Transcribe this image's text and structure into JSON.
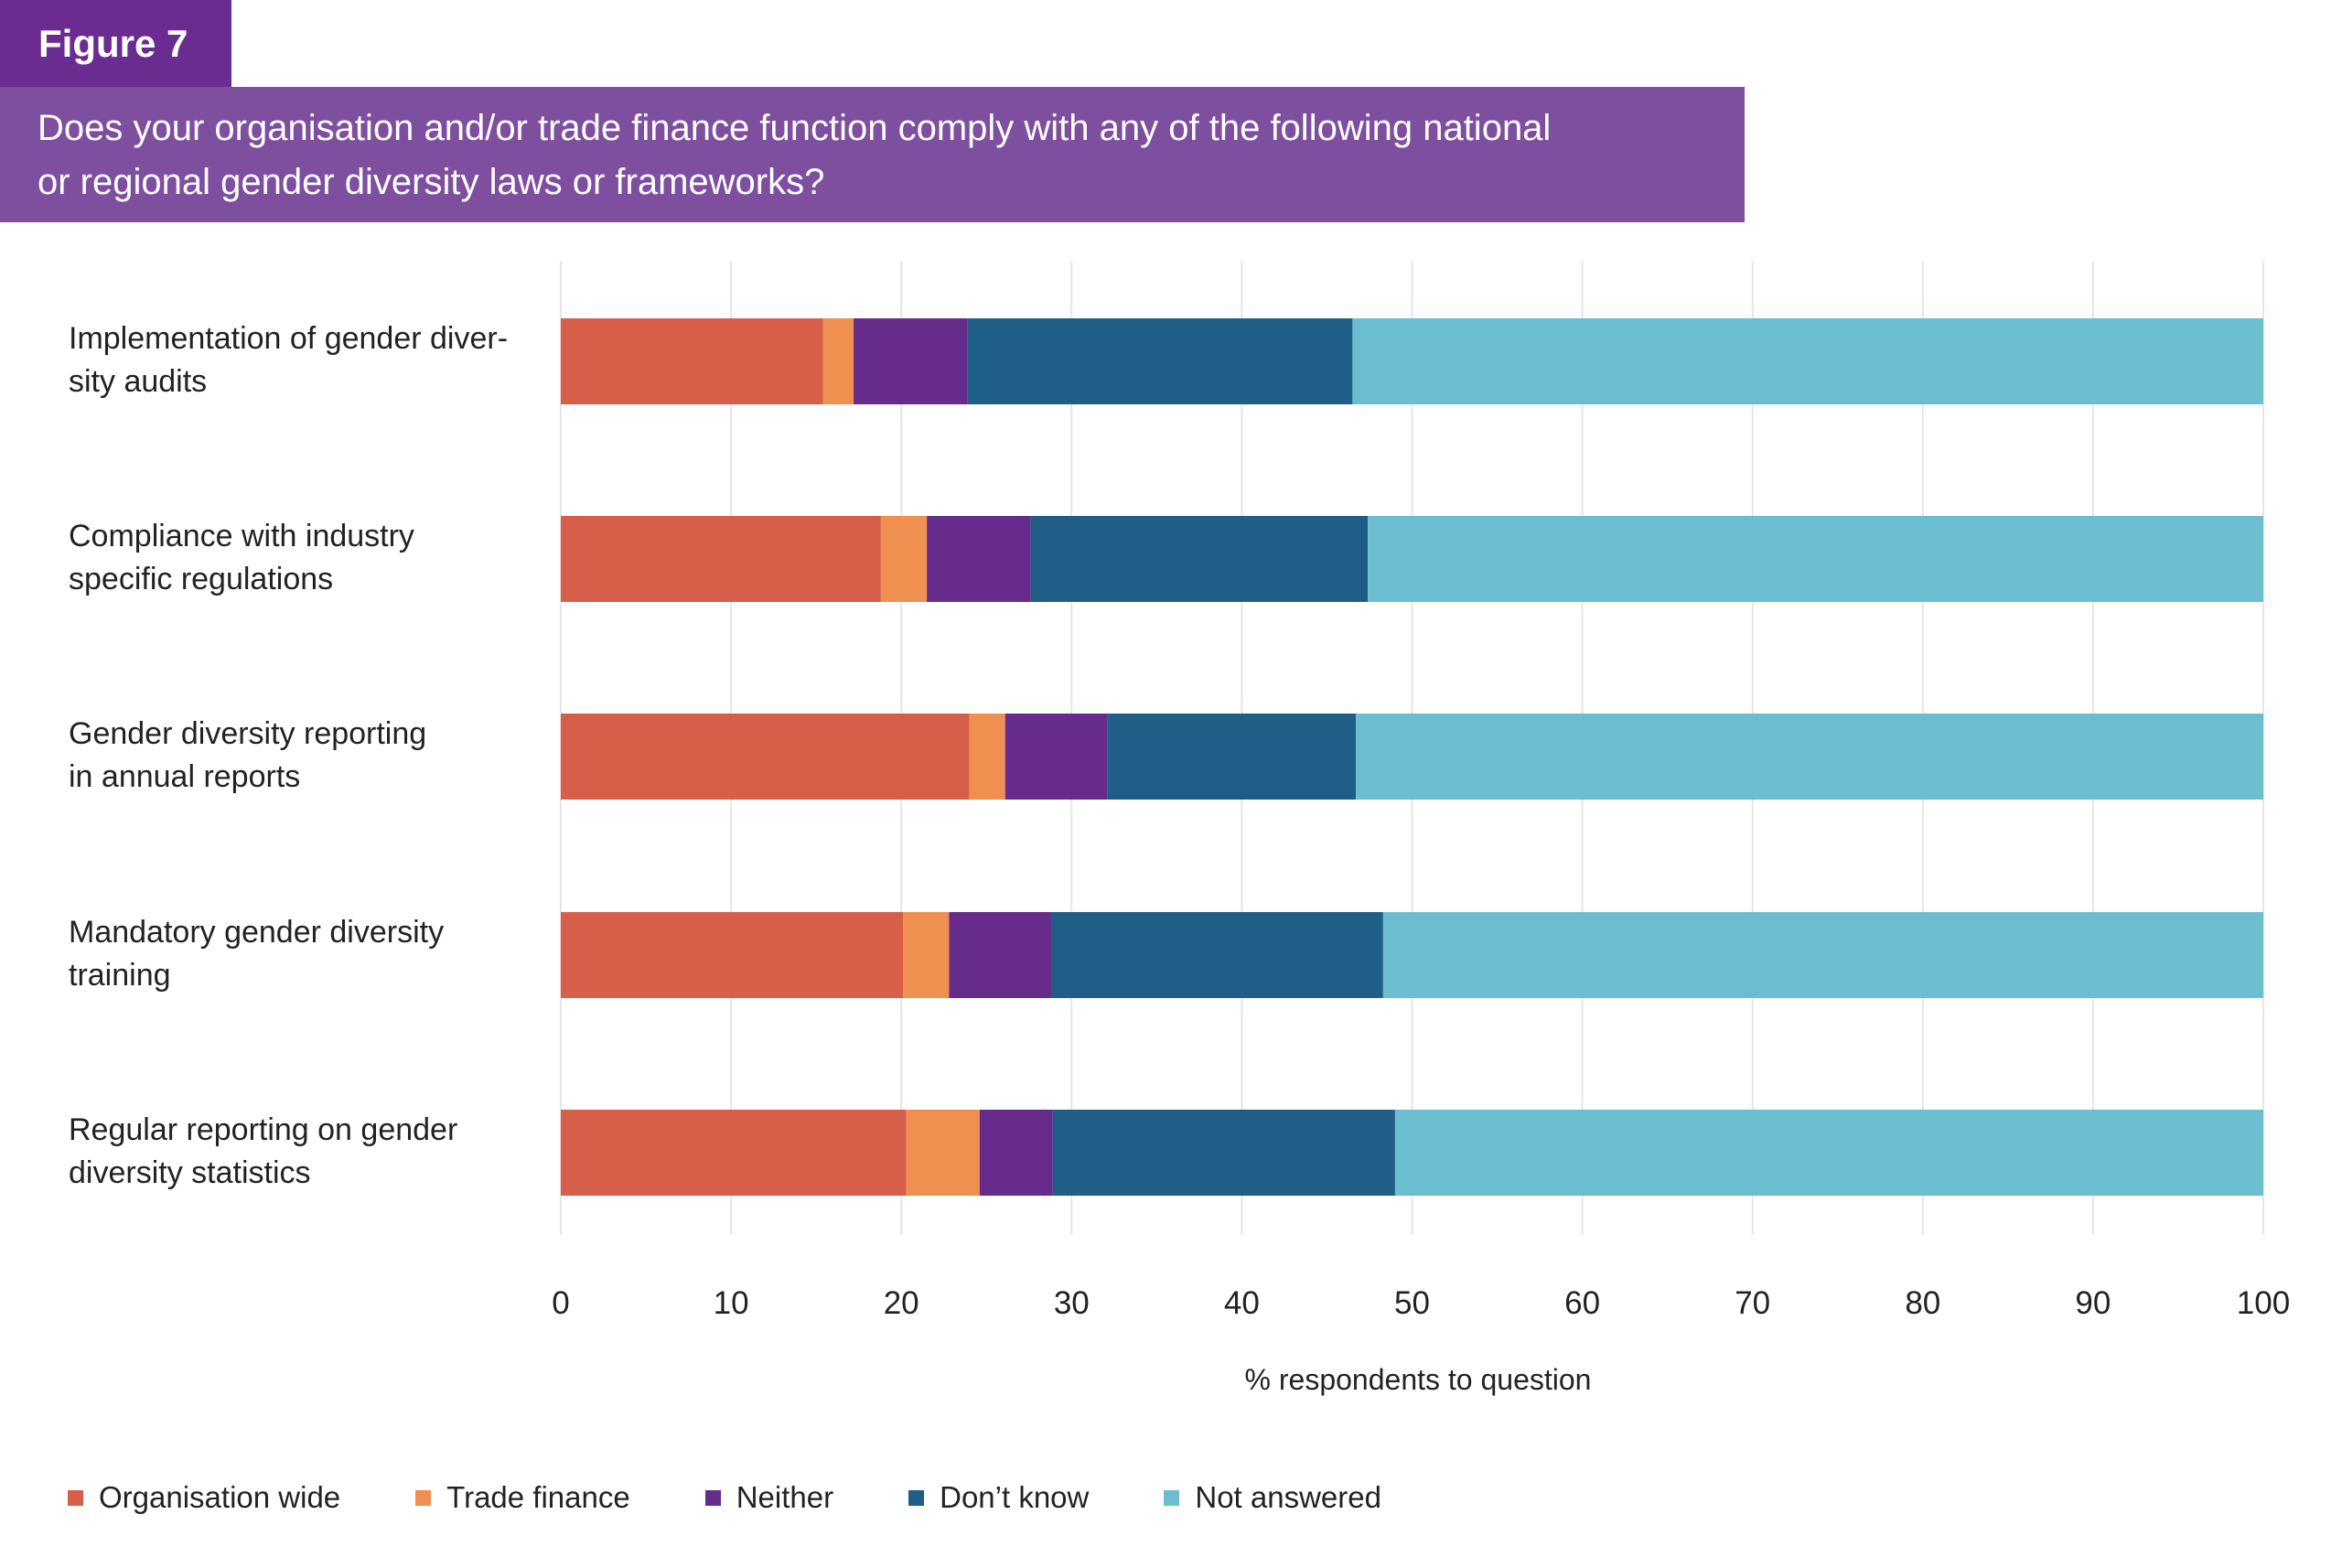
{
  "figure_label": "Figure 7",
  "title": "Does your organisation and/or trade finance function comply with any of the following national\nor regional gender diversity laws or frameworks?",
  "chart_data": {
    "type": "bar",
    "orientation": "horizontal",
    "stacked": true,
    "categories": [
      "Implementation of gender diver-\nsity audits",
      "Compliance with industry\nspecific regulations",
      "Gender diversity reporting\nin annual reports",
      "Mandatory gender diversity\ntraining",
      "Regular reporting on gender\ndiversity statistics"
    ],
    "series": [
      {
        "name": "Organisation wide",
        "color": "#d75f4a",
        "values": [
          15.4,
          18.8,
          24.0,
          20.1,
          20.3
        ]
      },
      {
        "name": "Trade finance",
        "color": "#ef9050",
        "values": [
          1.8,
          2.7,
          2.1,
          2.7,
          4.3
        ]
      },
      {
        "name": "Neither",
        "color": "#672b8c",
        "values": [
          6.7,
          6.1,
          6.0,
          6.0,
          4.3
        ]
      },
      {
        "name": "Don’t know",
        "color": "#1f5f87",
        "values": [
          22.6,
          19.8,
          14.6,
          19.5,
          20.1
        ]
      },
      {
        "name": "Not answered",
        "color": "#6bbdd0",
        "values": [
          53.5,
          52.6,
          53.3,
          51.7,
          51.0
        ]
      }
    ],
    "xlim": [
      0,
      100
    ],
    "xticks": [
      0,
      10,
      20,
      30,
      40,
      50,
      60,
      70,
      80,
      90,
      100
    ],
    "xlabel": "% respondents to question",
    "grid": true,
    "legend_position": "bottom-left"
  }
}
